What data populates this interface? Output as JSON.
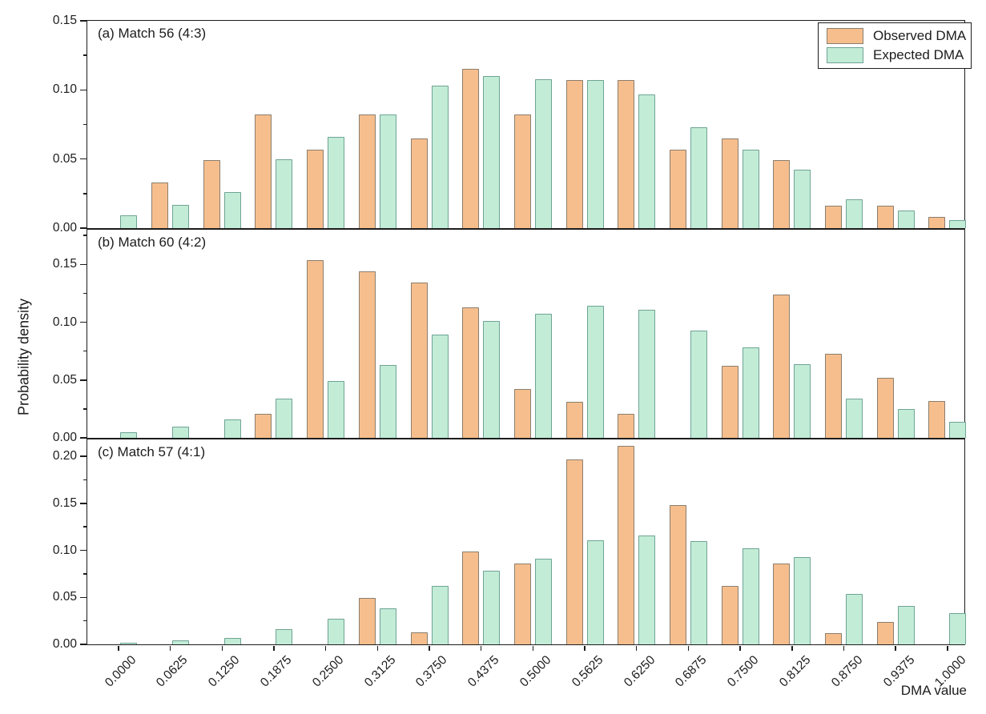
{
  "figure": {
    "ylabel": "Probability density",
    "xlabel": "DMA value"
  },
  "legend": {
    "items": [
      {
        "label": "Observed DMA",
        "fill": "#f6be8d",
        "border": "#8a7e6e"
      },
      {
        "label": "Expected DMA",
        "fill": "#c2ecd6",
        "border": "#6fa396"
      }
    ]
  },
  "axis_color": "#1c1c1c",
  "chart_data": [
    {
      "type": "bar",
      "title": "(a) Match 56 (4:3)",
      "ylim": [
        0,
        0.15
      ],
      "yticks": [
        "0.00",
        "0.05",
        "0.10",
        "0.15"
      ],
      "grid": false,
      "legend_position": "top-right",
      "categories": [
        "0.0000",
        "0.0625",
        "0.1250",
        "0.1875",
        "0.2500",
        "0.3125",
        "0.3750",
        "0.4375",
        "0.5000",
        "0.5625",
        "0.6250",
        "0.6875",
        "0.7500",
        "0.8125",
        "0.8750",
        "0.9375",
        "1.0000"
      ],
      "series": [
        {
          "name": "Observed DMA",
          "values": [
            0,
            0.033,
            0.049,
            0.082,
            0.057,
            0.082,
            0.065,
            0.115,
            0.082,
            0.107,
            0.107,
            0.057,
            0.065,
            0.049,
            0.016,
            0.016,
            0.008
          ]
        },
        {
          "name": "Expected DMA",
          "values": [
            0.009,
            0.017,
            0.026,
            0.05,
            0.066,
            0.082,
            0.103,
            0.11,
            0.108,
            0.107,
            0.097,
            0.073,
            0.057,
            0.042,
            0.021,
            0.013,
            0.006
          ]
        }
      ]
    },
    {
      "type": "bar",
      "title": "(b) Match 60 (4:2)",
      "ylim": [
        0,
        0.18
      ],
      "yticks": [
        "0.00",
        "0.05",
        "0.10",
        "0.15"
      ],
      "grid": false,
      "categories": [
        "0.0000",
        "0.0625",
        "0.1250",
        "0.1875",
        "0.2500",
        "0.3125",
        "0.3750",
        "0.4375",
        "0.5000",
        "0.5625",
        "0.6250",
        "0.6875",
        "0.7500",
        "0.8125",
        "0.8750",
        "0.9375",
        "1.0000"
      ],
      "series": [
        {
          "name": "Observed DMA",
          "values": [
            0,
            0,
            0,
            0.021,
            0.154,
            0.144,
            0.134,
            0.113,
            0.042,
            0.031,
            0.021,
            0,
            0.062,
            0.124,
            0.073,
            0.052,
            0.032
          ]
        },
        {
          "name": "Expected DMA",
          "values": [
            0.005,
            0.01,
            0.016,
            0.034,
            0.049,
            0.063,
            0.089,
            0.101,
            0.107,
            0.114,
            0.111,
            0.093,
            0.078,
            0.064,
            0.034,
            0.025,
            0.014
          ]
        }
      ]
    },
    {
      "type": "bar",
      "title": "(c) Match 57 (4:1)",
      "ylim": [
        0,
        0.218
      ],
      "yticks": [
        "0.00",
        "0.05",
        "0.10",
        "0.15",
        "0.20"
      ],
      "grid": false,
      "categories": [
        "0.0000",
        "0.0625",
        "0.1250",
        "0.1875",
        "0.2500",
        "0.3125",
        "0.3750",
        "0.4375",
        "0.5000",
        "0.5625",
        "0.6250",
        "0.6875",
        "0.7500",
        "0.8125",
        "0.8750",
        "0.9375",
        "1.0000"
      ],
      "series": [
        {
          "name": "Observed DMA",
          "values": [
            0,
            0,
            0,
            0,
            0,
            0.049,
            0.013,
            0.099,
            0.086,
            0.197,
            0.211,
            0.148,
            0.062,
            0.086,
            0.012,
            0.024,
            0
          ]
        },
        {
          "name": "Expected DMA",
          "values": [
            0.002,
            0.004,
            0.007,
            0.016,
            0.027,
            0.038,
            0.062,
            0.078,
            0.091,
            0.111,
            0.116,
            0.11,
            0.102,
            0.093,
            0.054,
            0.041,
            0.033
          ]
        }
      ]
    }
  ]
}
